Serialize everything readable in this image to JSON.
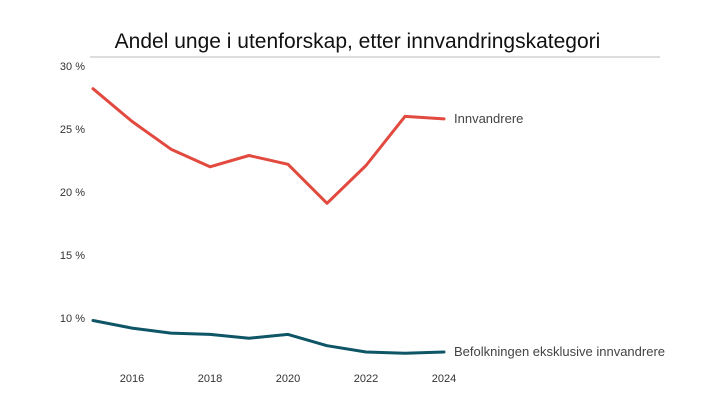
{
  "chart_data": {
    "type": "line",
    "title": "Andel unge i utenforskap, etter innvandringskategori",
    "xlabel": "",
    "ylabel": "",
    "x": [
      2015,
      2016,
      2017,
      2018,
      2019,
      2020,
      2021,
      2022,
      2023,
      2024
    ],
    "x_ticks": [
      "2016",
      "2018",
      "2020",
      "2022",
      "2024"
    ],
    "y_ticks": [
      "10 %",
      "15 %",
      "20 %",
      "25 %",
      "30 %"
    ],
    "ylim": [
      7,
      30
    ],
    "grid": false,
    "legend": "inline labels at line ends",
    "series": [
      {
        "name": "Innvandrere",
        "color": "#e24a3f",
        "values": [
          28.2,
          25.6,
          23.4,
          22.0,
          22.9,
          22.2,
          19.1,
          22.1,
          26.0,
          25.8
        ]
      },
      {
        "name": "Befolkningen eksklusive innvandrere",
        "color": "#0e5565",
        "values": [
          9.8,
          9.2,
          8.8,
          8.7,
          8.4,
          8.7,
          7.8,
          7.3,
          7.2,
          7.3
        ]
      }
    ]
  }
}
